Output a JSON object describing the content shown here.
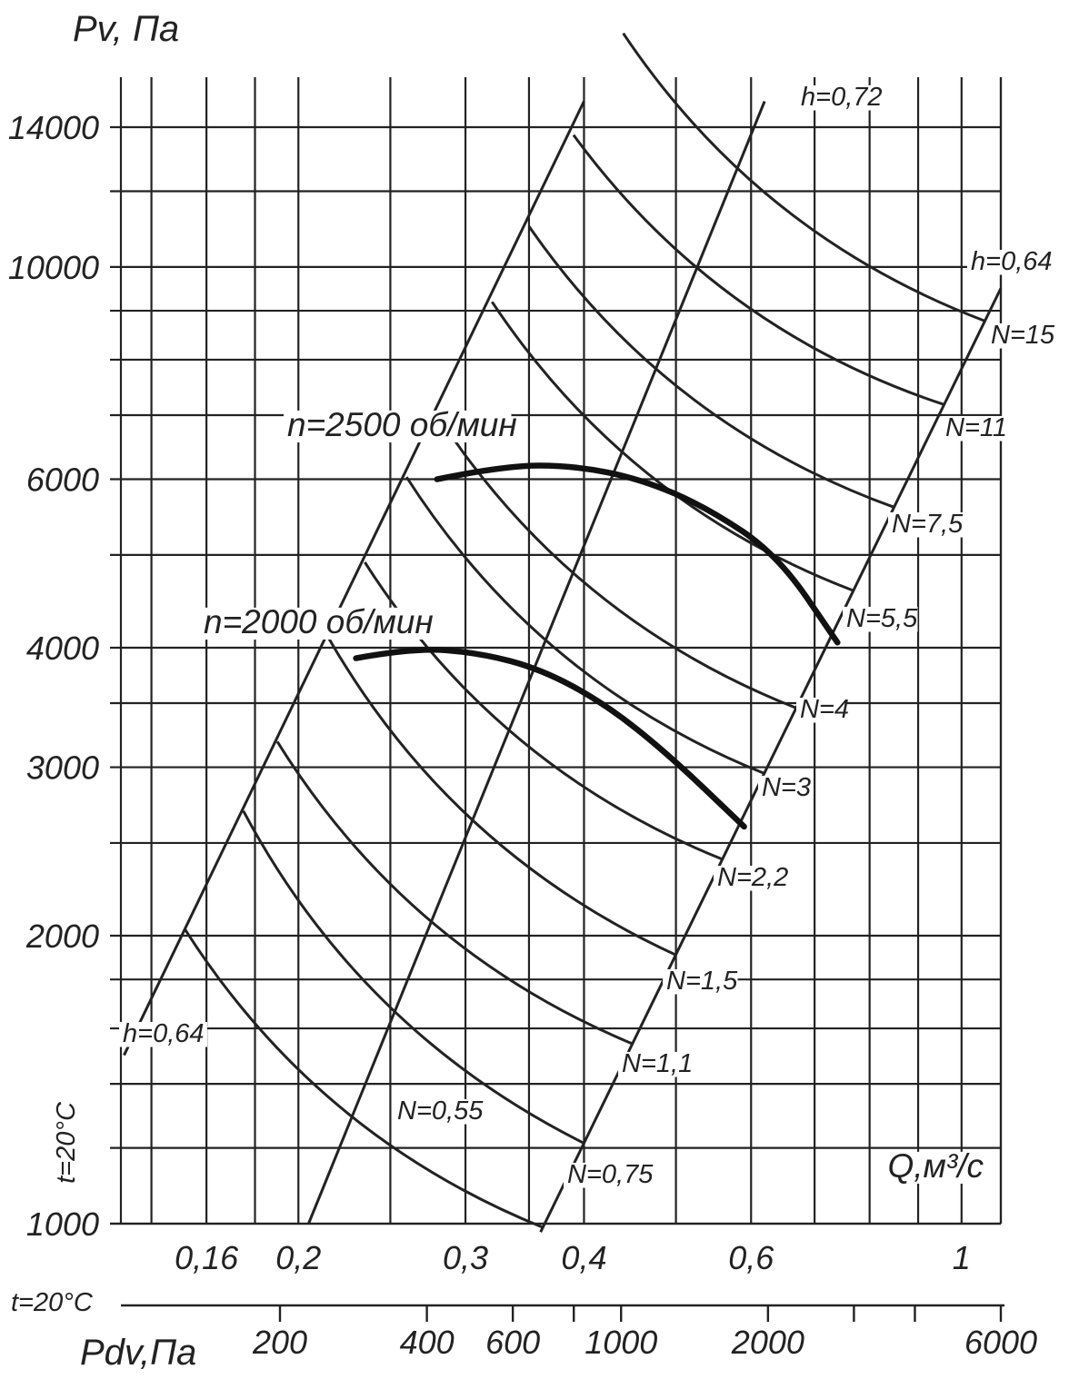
{
  "chart_data": {
    "type": "line",
    "ylabel": "Pv, Па",
    "xlabel": "Q,м³/с",
    "bottom_axis_label": "Pdv,Па",
    "y_ticks": [
      "14000",
      "10000",
      "6000",
      "4000",
      "3000",
      "2000",
      "1000"
    ],
    "x_ticks": [
      "0,16",
      "0,2",
      "0,3",
      "0,4",
      "0,6",
      "1"
    ],
    "pdv_ticks": [
      "200",
      "400",
      "600",
      "1000",
      "2000",
      "6000"
    ],
    "temp_left": "t=20°C",
    "temp_bottom": "t=20°C",
    "efficiency_lines": [
      "h=0,64",
      "h=0,72",
      "h=0,64"
    ],
    "power_labels": [
      "N=0,55",
      "N=0,75",
      "N=1,1",
      "N=1,5",
      "N=2,2",
      "N=3",
      "N=4",
      "N=5,5",
      "N=7,5",
      "N=11",
      "N=15"
    ],
    "series": [
      {
        "name": "n=2000 об/мин",
        "x": [
          0.23,
          0.265,
          0.31,
          0.36,
          0.42,
          0.49,
          0.59
        ],
        "y": [
          3900,
          4000,
          3950,
          3800,
          3500,
          3100,
          2600
        ]
      },
      {
        "name": "n=2500 об/мин",
        "x": [
          0.28,
          0.33,
          0.39,
          0.46,
          0.54,
          0.64,
          0.74
        ],
        "y": [
          6000,
          6200,
          6200,
          6000,
          5600,
          5000,
          4050
        ]
      }
    ]
  }
}
